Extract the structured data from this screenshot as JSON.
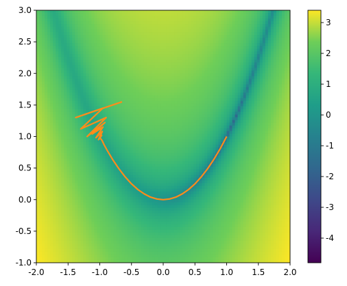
{
  "chart_data": {
    "type": "heatmap",
    "title": "",
    "xlabel": "",
    "ylabel": "",
    "xlim": [
      -2.0,
      2.0
    ],
    "ylim": [
      -1.0,
      3.0
    ],
    "xticks": [
      "-2.0",
      "-1.5",
      "-1.0",
      "-0.5",
      "0.0",
      "0.5",
      "1.0",
      "1.5",
      "2.0"
    ],
    "yticks": [
      "-1.0",
      "-0.5",
      "0.0",
      "0.5",
      "1.0",
      "1.5",
      "2.0",
      "2.5",
      "3.0"
    ],
    "colorbar": {
      "colormap": "viridis",
      "range": [
        -4.8,
        3.4
      ],
      "ticks": [
        "-4",
        "-3",
        "-2",
        "-1",
        "0",
        "1",
        "2",
        "3"
      ]
    },
    "surface": "log10 of Rosenbrock function f(x,y) = (1-x)^2 + 100(y-x^2)^2",
    "series": [
      {
        "color": "#ff8c1a",
        "type": "line",
        "x": [
          -0.65,
          -1.38,
          -0.95,
          -1.3,
          -0.9,
          -1.2,
          -0.92,
          -1.12,
          -0.95,
          -1.06,
          -0.96,
          -1.02,
          -0.97,
          -1.0,
          -0.98,
          -0.96,
          -0.93,
          -0.88,
          -0.8,
          -0.7,
          -0.6,
          -0.5,
          -0.4,
          -0.3,
          -0.2,
          -0.1,
          0.0,
          0.1,
          0.2,
          0.3,
          0.4,
          0.5,
          0.6,
          0.7,
          0.8,
          0.9,
          1.0
        ],
        "y": [
          1.55,
          1.3,
          1.45,
          1.12,
          1.3,
          1.0,
          1.22,
          1.04,
          1.15,
          0.98,
          1.08,
          0.95,
          1.02,
          0.97,
          0.96,
          0.93,
          0.865,
          0.775,
          0.64,
          0.49,
          0.36,
          0.25,
          0.16,
          0.09,
          0.04,
          0.01,
          0.0,
          0.01,
          0.04,
          0.09,
          0.16,
          0.25,
          0.36,
          0.49,
          0.64,
          0.81,
          1.0
        ]
      }
    ]
  }
}
